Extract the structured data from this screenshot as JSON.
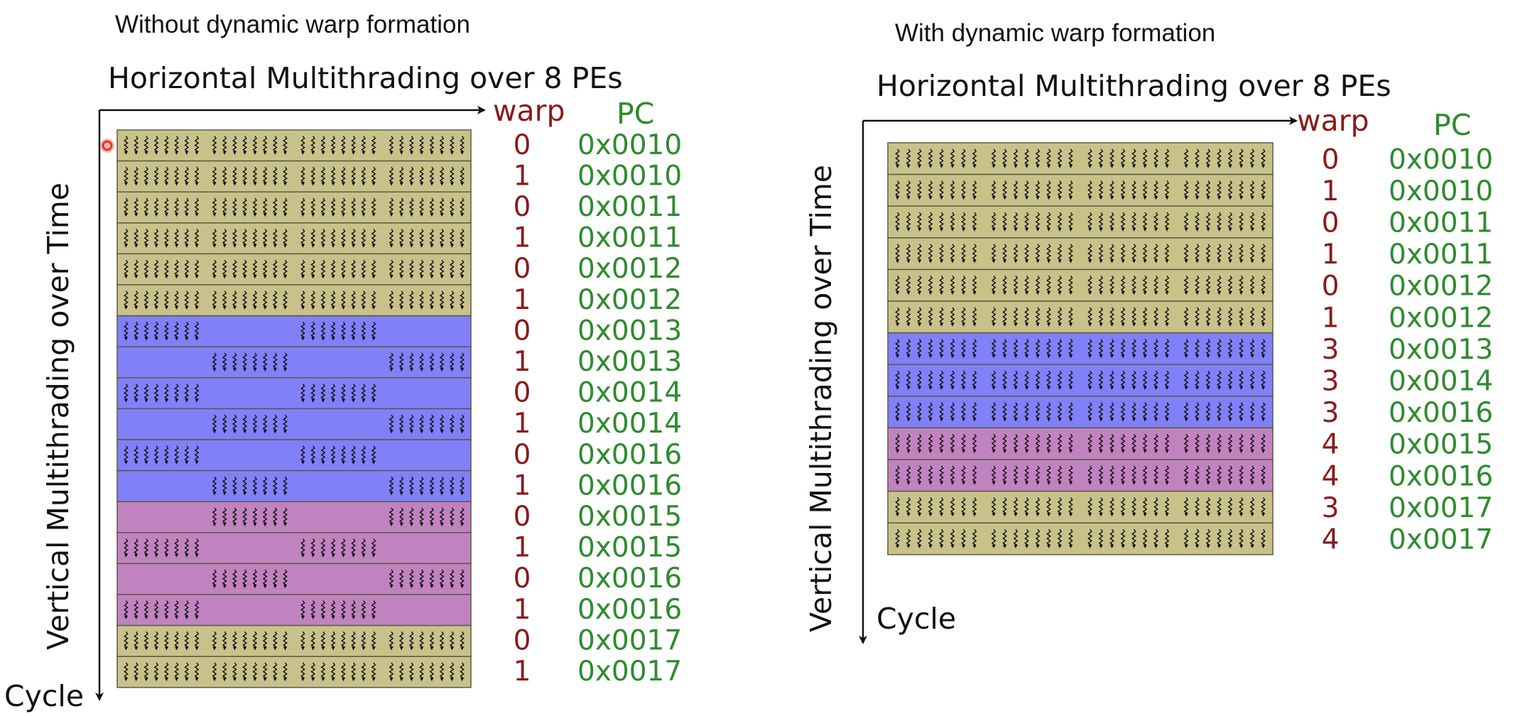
{
  "colors": {
    "tan": "#c8c28a",
    "blue": "#8080f8",
    "purple": "#c183bf",
    "warp_text": "#8b1a1a",
    "pc_text": "#2e8b2e",
    "cursor": "#e8322b"
  },
  "icons": [
    "thread-squiggle-icon",
    "cursor-dot-icon"
  ],
  "panels": [
    {
      "caption": "Without dynamic warp formation",
      "horizontal_title": "Horizontal Multithrading over 8 PEs",
      "vertical_title": "Vertical Multithrading over Time",
      "cycle_label": "Cycle",
      "warp_header": "warp",
      "pc_header": "PC",
      "rows": [
        {
          "warp": "0",
          "pc": "0x0010",
          "color": "tan",
          "active": "full"
        },
        {
          "warp": "1",
          "pc": "0x0010",
          "color": "tan",
          "active": "full"
        },
        {
          "warp": "0",
          "pc": "0x0011",
          "color": "tan",
          "active": "full"
        },
        {
          "warp": "1",
          "pc": "0x0011",
          "color": "tan",
          "active": "full"
        },
        {
          "warp": "0",
          "pc": "0x0012",
          "color": "tan",
          "active": "full"
        },
        {
          "warp": "1",
          "pc": "0x0012",
          "color": "tan",
          "active": "full"
        },
        {
          "warp": "0",
          "pc": "0x0013",
          "color": "blue",
          "active": "a"
        },
        {
          "warp": "1",
          "pc": "0x0013",
          "color": "blue",
          "active": "b"
        },
        {
          "warp": "0",
          "pc": "0x0014",
          "color": "blue",
          "active": "a"
        },
        {
          "warp": "1",
          "pc": "0x0014",
          "color": "blue",
          "active": "b"
        },
        {
          "warp": "0",
          "pc": "0x0016",
          "color": "blue",
          "active": "a"
        },
        {
          "warp": "1",
          "pc": "0x0016",
          "color": "blue",
          "active": "b"
        },
        {
          "warp": "0",
          "pc": "0x0015",
          "color": "purple",
          "active": "b"
        },
        {
          "warp": "1",
          "pc": "0x0015",
          "color": "purple",
          "active": "a"
        },
        {
          "warp": "0",
          "pc": "0x0016",
          "color": "purple",
          "active": "b"
        },
        {
          "warp": "1",
          "pc": "0x0016",
          "color": "purple",
          "active": "a"
        },
        {
          "warp": "0",
          "pc": "0x0017",
          "color": "tan",
          "active": "full"
        },
        {
          "warp": "1",
          "pc": "0x0017",
          "color": "tan",
          "active": "full"
        }
      ]
    },
    {
      "caption": "With dynamic warp formation",
      "horizontal_title": "Horizontal Multithrading over 8 PEs",
      "vertical_title": "Vertical Multithrading over Time",
      "cycle_label": "Cycle",
      "warp_header": "warp",
      "pc_header": "PC",
      "rows": [
        {
          "warp": "0",
          "pc": "0x0010",
          "color": "tan",
          "active": "full"
        },
        {
          "warp": "1",
          "pc": "0x0010",
          "color": "tan",
          "active": "full"
        },
        {
          "warp": "0",
          "pc": "0x0011",
          "color": "tan",
          "active": "full"
        },
        {
          "warp": "1",
          "pc": "0x0011",
          "color": "tan",
          "active": "full"
        },
        {
          "warp": "0",
          "pc": "0x0012",
          "color": "tan",
          "active": "full"
        },
        {
          "warp": "1",
          "pc": "0x0012",
          "color": "tan",
          "active": "full"
        },
        {
          "warp": "3",
          "pc": "0x0013",
          "color": "blue",
          "active": "full"
        },
        {
          "warp": "3",
          "pc": "0x0014",
          "color": "blue",
          "active": "full"
        },
        {
          "warp": "3",
          "pc": "0x0016",
          "color": "blue",
          "active": "full"
        },
        {
          "warp": "4",
          "pc": "0x0015",
          "color": "purple",
          "active": "full"
        },
        {
          "warp": "4",
          "pc": "0x0016",
          "color": "purple",
          "active": "full"
        },
        {
          "warp": "3",
          "pc": "0x0017",
          "color": "tan",
          "active": "full"
        },
        {
          "warp": "4",
          "pc": "0x0017",
          "color": "tan",
          "active": "full"
        }
      ]
    }
  ]
}
